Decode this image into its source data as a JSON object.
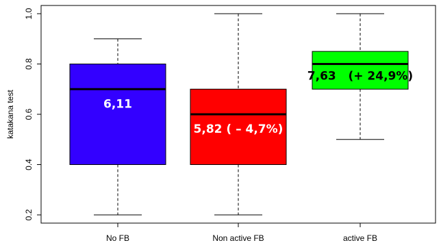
{
  "chart_data": {
    "type": "box",
    "ylabel": "katakana test",
    "ylim": [
      0.2,
      1.0
    ],
    "yticks": [
      {
        "value": 0.2,
        "label": "0.2"
      },
      {
        "value": 0.4,
        "label": "0.4"
      },
      {
        "value": 0.6,
        "label": "0.6"
      },
      {
        "value": 0.8,
        "label": "0.8"
      },
      {
        "value": 1.0,
        "label": "1.0"
      }
    ],
    "boxes": [
      {
        "category": "No FB",
        "min": 0.2,
        "q1": 0.4,
        "median": 0.7,
        "q3": 0.8,
        "max": 0.9,
        "color": "#3300ff",
        "label": "6,11",
        "label_color": "#ffffff"
      },
      {
        "category": "Non active FB",
        "min": 0.2,
        "q1": 0.4,
        "median": 0.6,
        "q3": 0.7,
        "max": 1.0,
        "color": "#ff0000",
        "label": "5,82 ( – 4,7%)",
        "label_color": "#ffffff"
      },
      {
        "category": "active FB",
        "min": 0.5,
        "q1": 0.7,
        "median": 0.8,
        "q3": 0.85,
        "max": 1.0,
        "color": "#00ff00",
        "label": "7,63   (+ 24,9%)",
        "label_color": "#000000"
      }
    ]
  }
}
